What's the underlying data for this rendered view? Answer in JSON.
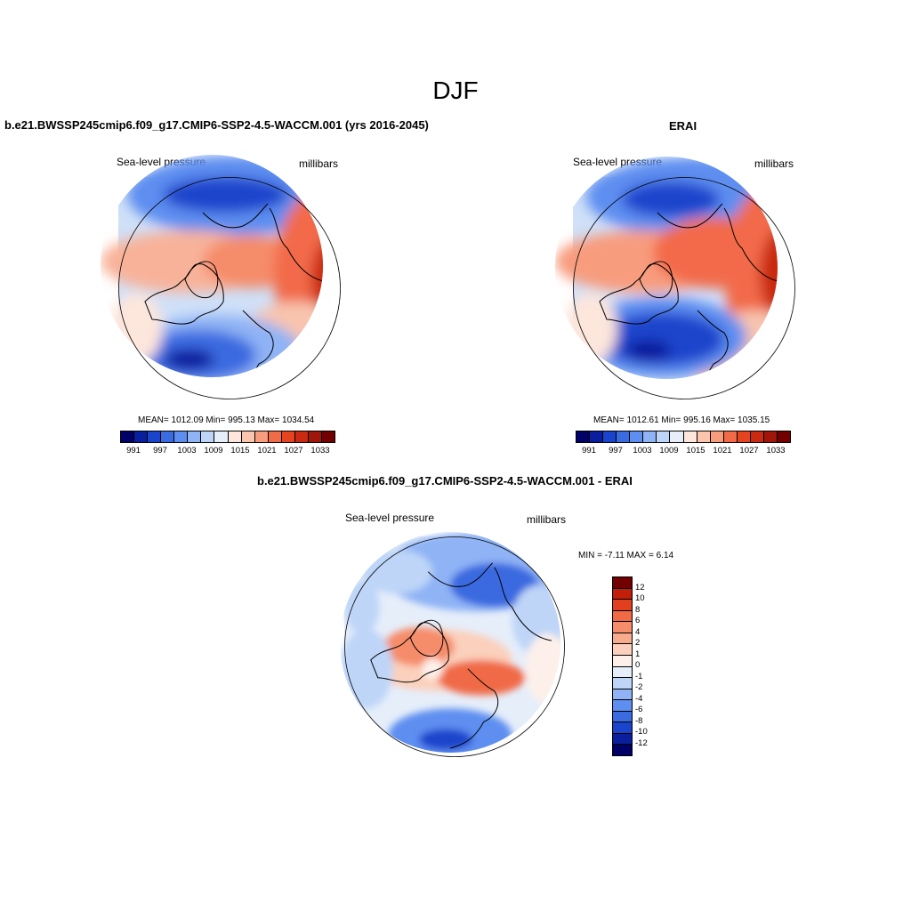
{
  "figure": {
    "season_title": "DJF"
  },
  "panels": [
    {
      "title": "b.e21.BWSSP245cmip6.f09_g17.CMIP6-SSP2-4.5-WACCM.001 (yrs 2016-2045)",
      "variable_label": "Sea-level pressure",
      "units_label": "millibars",
      "stats_text": "MEAN= 1012.09  Min= 995.13  Max= 1034.54"
    },
    {
      "title": "ERAI",
      "variable_label": "Sea-level pressure",
      "units_label": "millibars",
      "stats_text": "MEAN= 1012.61  Min= 995.16  Max= 1035.15"
    },
    {
      "title": "b.e21.BWSSP245cmip6.f09_g17.CMIP6-SSP2-4.5-WACCM.001 - ERAI",
      "variable_label": "Sea-level pressure",
      "units_label": "millibars",
      "stats_text": "MIN =  -7.11 MAX =   6.14"
    }
  ],
  "abs_colorbar": {
    "colors": [
      "#000066",
      "#0a1f9e",
      "#1a44cc",
      "#3b6be0",
      "#5d8ef0",
      "#8fb3f5",
      "#bed5f8",
      "#e6eefa",
      "#fde6dc",
      "#fbc4ad",
      "#f89c7e",
      "#f26b48",
      "#e64321",
      "#c92a10",
      "#a0170a",
      "#730000"
    ],
    "tick_labels": [
      "991",
      "997",
      "1003",
      "1009",
      "1015",
      "1021",
      "1027",
      "1033"
    ]
  },
  "diff_colorbar": {
    "colors": [
      "#730000",
      "#c0200a",
      "#e0401e",
      "#f06a46",
      "#f58c6a",
      "#f8ac8e",
      "#fbd0bc",
      "#fdf0ea",
      "#e6eefa",
      "#bed5f8",
      "#8fb3f5",
      "#5d8ef0",
      "#3b6be0",
      "#1a44cc",
      "#0a1f9e",
      "#000066"
    ],
    "tick_labels": [
      "12",
      "10",
      "8",
      "6",
      "4",
      "2",
      "1",
      "0",
      "-1",
      "-2",
      "-4",
      "-6",
      "-8",
      "-10",
      "-12"
    ]
  }
}
